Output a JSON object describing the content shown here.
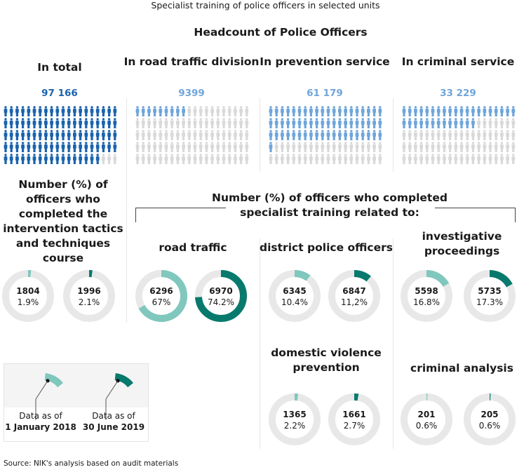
{
  "title": "Specialist training of police officers in selected units",
  "headcount_title": "Headcount of Police Officers",
  "colors": {
    "blue_dark": "#1b63ad",
    "blue_light": "#6fa5da",
    "icon_empty": "#d9d9d9",
    "teal_light": "#80c7bd",
    "teal_dark": "#087a6d",
    "ring": "#e8e8e8"
  },
  "chart_data": [
    {
      "type": "pictogram",
      "icons_total": 100,
      "groups": [
        {
          "label": "In total",
          "value": "97 166",
          "filled": 97,
          "color": "#1b63ad"
        },
        {
          "label": "In road traffic division",
          "value": "9399",
          "filled": 9,
          "color": "#6fa5da"
        },
        {
          "label": "In prevention service",
          "value": "61 179",
          "filled": 61,
          "color": "#6fa5da"
        },
        {
          "label": "In criminal service",
          "value": "33 229",
          "filled": 33,
          "color": "#6fa5da"
        }
      ]
    },
    {
      "type": "donut",
      "group_title": "Number (%) of officers who completed specialist training related to:",
      "series": [
        "1 January 2018",
        "30 June 2019"
      ],
      "panels": [
        {
          "title": "Number (%) of officers who completed the intervention tactics and techniques course",
          "items": [
            {
              "value": "1804",
              "pct_label": "1.9%",
              "pct": 1.9
            },
            {
              "value": "1996",
              "pct_label": "2.1%",
              "pct": 2.1
            }
          ]
        },
        {
          "title": "road traffic",
          "items": [
            {
              "value": "6296",
              "pct_label": "67%",
              "pct": 67
            },
            {
              "value": "6970",
              "pct_label": "74.2%",
              "pct": 74.2
            }
          ]
        },
        {
          "title": "district police officers",
          "items": [
            {
              "value": "6345",
              "pct_label": "10.4%",
              "pct": 10.4
            },
            {
              "value": "6847",
              "pct_label": "11,2%",
              "pct": 11.2
            }
          ]
        },
        {
          "title": "investigative proceedings",
          "items": [
            {
              "value": "5598",
              "pct_label": "16.8%",
              "pct": 16.8
            },
            {
              "value": "5735",
              "pct_label": "17.3%",
              "pct": 17.3
            }
          ]
        },
        {
          "title": "domestic violence prevention",
          "items": [
            {
              "value": "1365",
              "pct_label": "2.2%",
              "pct": 2.2
            },
            {
              "value": "1661",
              "pct_label": "2.7%",
              "pct": 2.7
            }
          ]
        },
        {
          "title": "criminal analysis",
          "items": [
            {
              "value": "201",
              "pct_label": "0.6%",
              "pct": 0.6
            },
            {
              "value": "205",
              "pct_label": "0.6%",
              "pct": 0.6
            }
          ]
        }
      ]
    }
  ],
  "legend": {
    "prefix": "Data as of",
    "dates": [
      "1 January 2018",
      "30 June 2019"
    ]
  },
  "source": "Source: NIK's analysis based on audit materials"
}
